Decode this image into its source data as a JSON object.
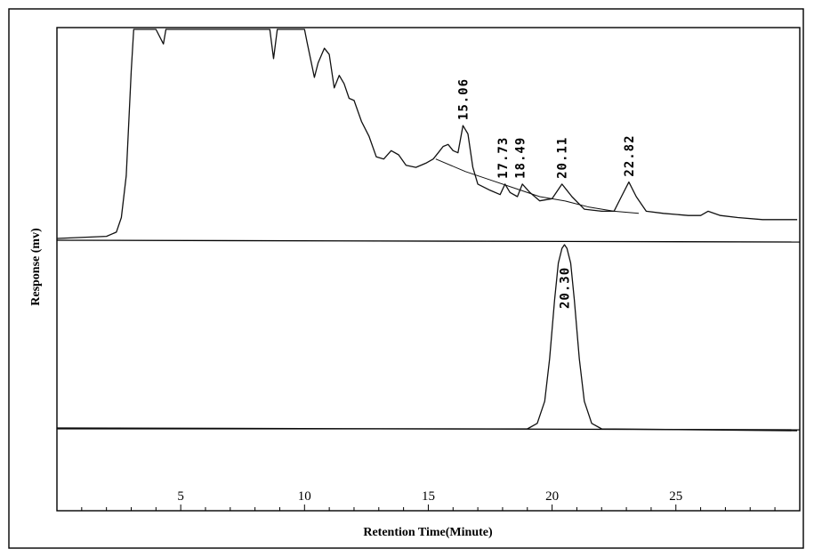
{
  "chart_data": {
    "type": "line",
    "title": "",
    "xlabel": "Retention Time(Minute)",
    "ylabel": "Response (mv)",
    "xlim": [
      0,
      30
    ],
    "x_ticks": [
      5,
      10,
      15,
      20,
      25
    ],
    "grid": false,
    "legend": "none",
    "panels": [
      {
        "name": "",
        "peak_labels": [
          "15.06",
          "17.73",
          "18.49",
          "20.11",
          "22.82"
        ],
        "peaks": [
          {
            "label": "15.06",
            "x": 16.4,
            "y": 0.54
          },
          {
            "label": "17.73",
            "x": 18.0,
            "y": 0.26
          },
          {
            "label": "18.49",
            "x": 18.7,
            "y": 0.26
          },
          {
            "label": "20.11",
            "x": 20.4,
            "y": 0.26
          },
          {
            "label": "22.82",
            "x": 23.1,
            "y": 0.27
          }
        ],
        "series": [
          {
            "x": [
              0.0,
              2.0,
              2.4,
              2.6,
              2.8,
              3.0,
              3.1,
              3.3,
              4.0,
              4.3,
              4.4,
              5.0,
              8.6,
              8.75,
              8.9,
              9.5,
              10.0,
              10.1,
              10.4,
              10.55,
              10.8,
              11.0,
              11.2,
              11.4,
              11.6,
              11.8,
              12.0,
              12.3,
              12.6,
              12.9,
              13.2,
              13.5,
              13.8,
              14.1,
              14.5,
              14.9,
              15.2,
              15.4,
              15.6,
              15.8,
              16.0,
              16.2,
              16.4,
              16.6,
              16.8,
              17.0,
              17.5,
              17.9,
              18.1,
              18.3,
              18.6,
              18.8,
              19.1,
              19.5,
              20.0,
              20.4,
              20.8,
              21.3,
              22.0,
              22.5,
              22.8,
              23.1,
              23.4,
              23.8,
              24.5,
              25.5,
              26.0,
              26.3,
              26.8,
              27.5,
              28.5,
              29.9
            ],
            "y": [
              0.0,
              0.01,
              0.03,
              0.1,
              0.3,
              0.8,
              1.0,
              1.0,
              1.0,
              0.93,
              1.0,
              1.0,
              1.0,
              0.86,
              1.0,
              1.0,
              1.0,
              0.94,
              0.77,
              0.84,
              0.91,
              0.88,
              0.72,
              0.78,
              0.74,
              0.67,
              0.66,
              0.56,
              0.49,
              0.39,
              0.38,
              0.42,
              0.4,
              0.35,
              0.34,
              0.36,
              0.38,
              0.41,
              0.44,
              0.45,
              0.42,
              0.41,
              0.54,
              0.5,
              0.34,
              0.26,
              0.23,
              0.21,
              0.26,
              0.22,
              0.2,
              0.26,
              0.22,
              0.18,
              0.19,
              0.26,
              0.2,
              0.14,
              0.13,
              0.13,
              0.2,
              0.27,
              0.2,
              0.13,
              0.12,
              0.11,
              0.11,
              0.13,
              0.11,
              0.1,
              0.09,
              0.09
            ]
          }
        ],
        "baseline": {
          "x": [
            15.3,
            16.5,
            17.5,
            18.5,
            19.5,
            20.5,
            21.5,
            22.5,
            23.5
          ],
          "y": [
            0.38,
            0.32,
            0.28,
            0.24,
            0.2,
            0.18,
            0.15,
            0.13,
            0.12
          ]
        }
      },
      {
        "name": "",
        "peak_labels": [
          "20.30"
        ],
        "peaks": [
          {
            "label": "20.30",
            "x": 20.5,
            "y": 1.0
          }
        ],
        "series": [
          {
            "x": [
              0.0,
              19.0,
              19.4,
              19.7,
              19.9,
              20.1,
              20.25,
              20.4,
              20.5,
              20.6,
              20.75,
              20.9,
              21.1,
              21.3,
              21.6,
              22.0,
              29.9
            ],
            "y": [
              0.0,
              0.0,
              0.03,
              0.15,
              0.38,
              0.7,
              0.9,
              0.98,
              1.0,
              0.98,
              0.9,
              0.7,
              0.38,
              0.15,
              0.03,
              0.0,
              -0.01
            ]
          }
        ]
      }
    ]
  }
}
